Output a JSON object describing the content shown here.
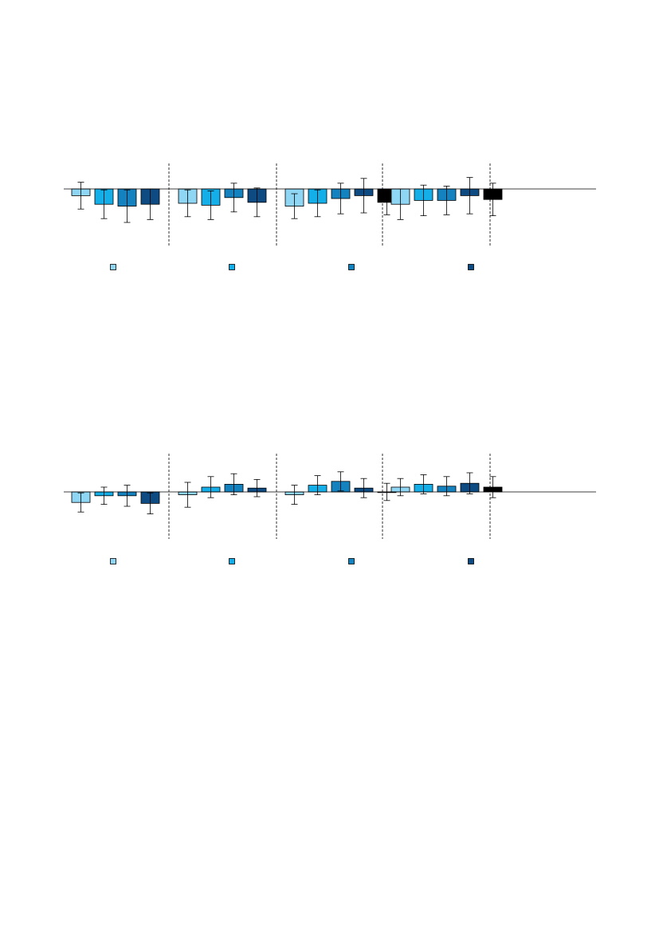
{
  "colors": {
    "series": [
      "#8fd6f4",
      "#14aee8",
      "#1582c0",
      "#0d4b82"
    ],
    "axis": "#000000",
    "divider": "#000000",
    "bar_stroke": "#000000"
  },
  "chart_data": [
    {
      "type": "bar",
      "groups": 5,
      "series_count": 4,
      "legend_placement": "bottom",
      "grid": false,
      "ylim": [
        -2.5,
        5.8
      ],
      "series": [
        {
          "values": [
            -0.7,
            -1.6,
            -1.8,
            -1.6
          ],
          "errors": [
            1.4,
            1.5,
            1.7,
            1.6
          ]
        },
        {
          "values": [
            -1.5,
            -1.7,
            -0.9,
            -1.4
          ],
          "errors": [
            1.4,
            1.5,
            1.5,
            1.5
          ]
        },
        {
          "values": [
            -1.8,
            -1.5,
            -1.0,
            -0.7,
            -1.4
          ],
          "errors": [
            1.3,
            1.4,
            1.6,
            1.8,
            1.3
          ]
        },
        {
          "values": [
            -1.6,
            -1.2,
            -1.2,
            -0.7,
            -1.1
          ],
          "errors": [
            1.6,
            1.6,
            1.5,
            1.9,
            1.7
          ]
        }
      ]
    },
    {
      "type": "bar",
      "groups": 5,
      "series_count": 4,
      "legend_placement": "bottom",
      "grid": false,
      "ylim": [
        -2.5,
        5.8
      ],
      "series": [
        {
          "values": [
            -1.1,
            -0.4,
            -0.4,
            -1.2
          ],
          "errors": [
            1.0,
            0.9,
            1.1,
            1.1
          ]
        },
        {
          "values": [
            -0.3,
            0.5,
            0.8,
            0.4
          ],
          "errors": [
            1.3,
            1.1,
            1.1,
            0.9
          ]
        },
        {
          "values": [
            -0.3,
            0.7,
            1.1,
            0.4,
            0.0
          ],
          "errors": [
            1.0,
            1.0,
            1.0,
            1.0,
            0.9
          ]
        },
        {
          "values": [
            0.5,
            0.8,
            0.6,
            0.9,
            0.5
          ],
          "errors": [
            0.9,
            1.0,
            1.0,
            1.1,
            1.1
          ]
        }
      ]
    }
  ]
}
